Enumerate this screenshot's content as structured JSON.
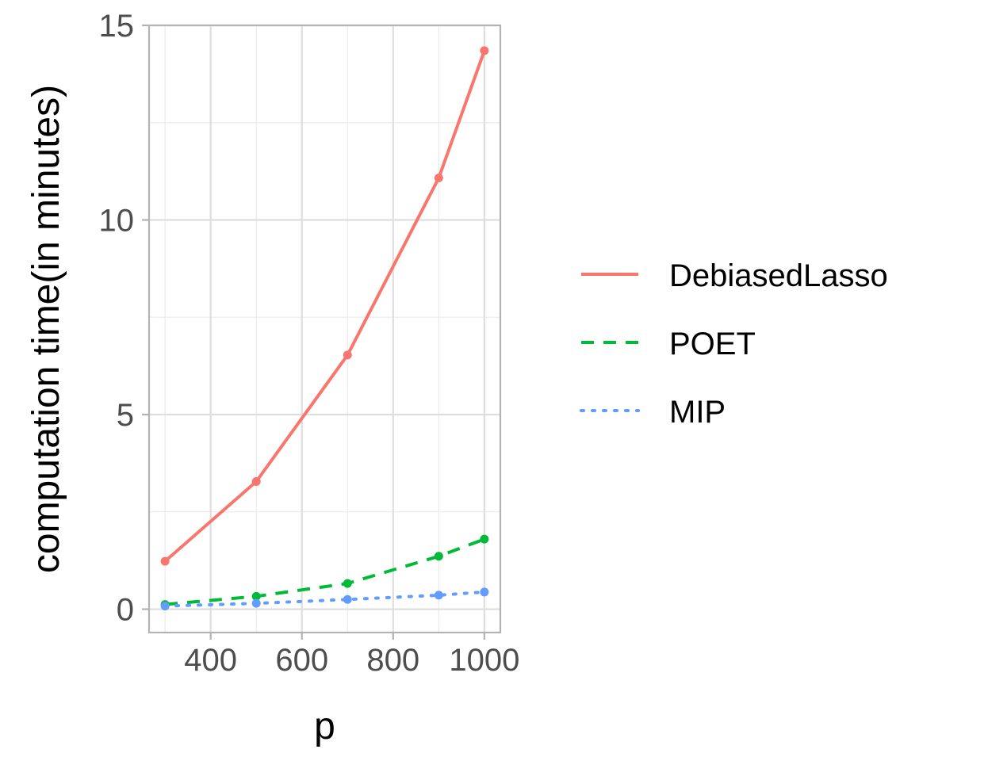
{
  "chart_data": {
    "type": "line",
    "xlabel": "p",
    "ylabel": "computation time(in minutes)",
    "x": [
      300,
      500,
      700,
      900,
      1000
    ],
    "xlim": [
      265,
      1035
    ],
    "ylim": [
      -0.6,
      15
    ],
    "x_ticks": [
      400,
      600,
      800,
      1000
    ],
    "y_ticks": [
      0,
      5,
      10,
      15
    ],
    "grid": true,
    "legend_position": "right",
    "series": [
      {
        "name": "DebiasedLasso",
        "values": [
          1.23,
          3.28,
          6.53,
          11.08,
          14.35
        ],
        "color": "#F8766D",
        "line_style": "solid"
      },
      {
        "name": "POET",
        "values": [
          0.12,
          0.33,
          0.66,
          1.36,
          1.8
        ],
        "color": "#00BA38",
        "line_style": "dashed"
      },
      {
        "name": "MIP",
        "values": [
          0.08,
          0.15,
          0.25,
          0.36,
          0.44
        ],
        "color": "#619CFF",
        "line_style": "dotted"
      }
    ]
  }
}
